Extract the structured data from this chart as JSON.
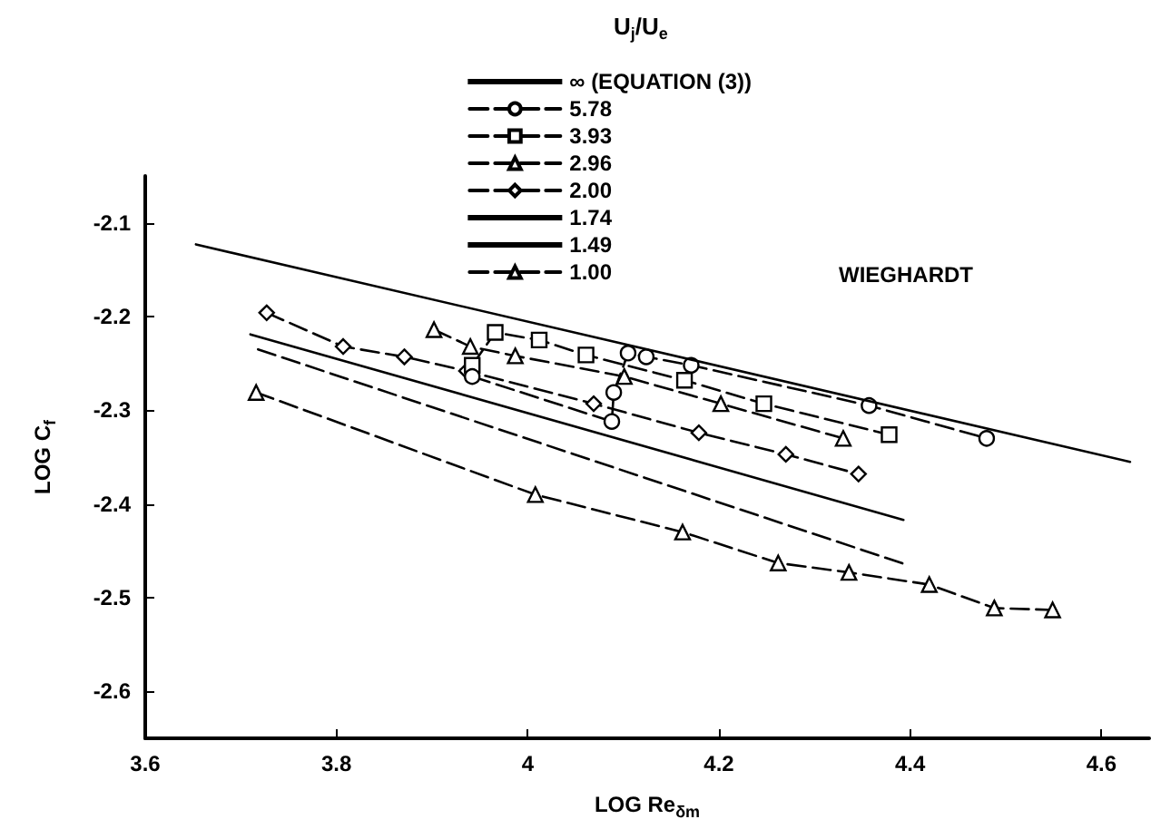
{
  "chart_data": {
    "type": "line",
    "xlabel": "LOG Re$_{δm}$",
    "ylabel": "LOG C$_{f}$",
    "legend_title": "U$_{j}$/U$_{e}$",
    "annotations": [
      "WIEGHARDT"
    ],
    "xlim": [
      3.6,
      4.65
    ],
    "xticks": [
      3.6,
      3.8,
      4.0,
      4.2,
      4.4,
      4.6
    ],
    "ylim": [
      -2.65,
      -2.05
    ],
    "yticks": [
      -2.1,
      -2.2,
      -2.3,
      -2.4,
      -2.5,
      -2.6
    ],
    "grid": false,
    "legend": "top right",
    "series": [
      {
        "name": "∞ (EQUATION (3))",
        "color": "#000000",
        "marker": "none",
        "line_style": "solid",
        "x": [
          3.653,
          4.63
        ],
        "values": [
          -2.123,
          -2.355
        ]
      },
      {
        "name": "5.78",
        "color": "#000000",
        "marker": "circle",
        "line_style": "dashed",
        "x": [
          3.942,
          4.088,
          4.09,
          4.105,
          4.124,
          4.171,
          4.357,
          4.48
        ],
        "values": [
          -2.264,
          -2.312,
          -2.281,
          -2.239,
          -2.243,
          -2.252,
          -2.295,
          -2.33
        ]
      },
      {
        "name": "3.93",
        "color": "#000000",
        "marker": "square",
        "line_style": "dashed",
        "x": [
          3.942,
          3.966,
          4.012,
          4.061,
          4.164,
          4.247,
          4.378
        ],
        "values": [
          -2.252,
          -2.217,
          -2.225,
          -2.241,
          -2.268,
          -2.293,
          -2.326
        ]
      },
      {
        "name": "2.96",
        "color": "#000000",
        "marker": "triangle",
        "line_style": "dashed",
        "x": [
          3.902,
          3.94,
          3.987,
          4.101,
          4.202,
          4.33
        ],
        "values": [
          -2.214,
          -2.232,
          -2.242,
          -2.264,
          -2.293,
          -2.33
        ]
      },
      {
        "name": "2.00",
        "color": "#000000",
        "marker": "diamond",
        "line_style": "dashed",
        "x": [
          3.727,
          3.807,
          3.871,
          3.936,
          4.069,
          4.179,
          4.27,
          4.346
        ],
        "values": [
          -2.196,
          -2.232,
          -2.243,
          -2.258,
          -2.293,
          -2.324,
          -2.347,
          -2.368
        ]
      },
      {
        "name": "1.74",
        "color": "#000000",
        "marker": "none",
        "line_style": "solid",
        "x": [
          3.71,
          4.393
        ],
        "values": [
          -2.219,
          -2.417
        ]
      },
      {
        "name": "1.49",
        "color": "#000000",
        "marker": "none",
        "line_style": "dashed",
        "x": [
          3.718,
          4.397
        ],
        "values": [
          -2.235,
          -2.465
        ]
      },
      {
        "name": "1.00",
        "color": "#000000",
        "marker": "triangle",
        "line_style": "dashed",
        "x": [
          3.716,
          4.008,
          4.162,
          4.262,
          4.336,
          4.42,
          4.488,
          4.549
        ],
        "values": [
          -2.281,
          -2.39,
          -2.43,
          -2.463,
          -2.473,
          -2.486,
          -2.511,
          -2.513
        ]
      }
    ]
  }
}
